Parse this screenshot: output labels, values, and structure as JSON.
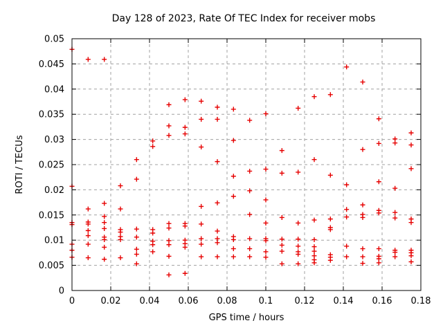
{
  "title": "Day 128 of 2023, Rate Of TEC Index for receiver mobs",
  "colors": {
    "marker": "#e60000",
    "grid": "#a0a0a0",
    "frame": "#000000",
    "background": "#ffffff",
    "text": "#000000"
  },
  "chart_data": {
    "type": "scatter",
    "title": "Day 128 of 2023, Rate Of TEC Index for receiver mobs",
    "xlabel": "GPS time / hours",
    "ylabel": "ROTI / TECUs",
    "xlim": [
      0,
      0.18
    ],
    "ylim": [
      0,
      0.05
    ],
    "x_tick_values": [
      0,
      0.02,
      0.04,
      0.06,
      0.08,
      0.1,
      0.12,
      0.14,
      0.16,
      0.18
    ],
    "x_tick_labels": [
      "0",
      "0.02",
      "0.04",
      "0.06",
      "0.08",
      "0.1",
      "0.12",
      "0.14",
      "0.16",
      "0.18"
    ],
    "y_tick_values": [
      0,
      0.005,
      0.01,
      0.015,
      0.02,
      0.025,
      0.03,
      0.035,
      0.04,
      0.045,
      0.05
    ],
    "y_tick_labels": [
      "0",
      "0.005",
      "0.01",
      "0.015",
      "0.02",
      "0.025",
      "0.03",
      "0.035",
      "0.04",
      "0.045",
      "0.05"
    ],
    "grid": true,
    "legend_position": "none",
    "marker": {
      "shape": "plus",
      "size": 7,
      "color": "#e60000"
    },
    "series": [
      {
        "name": "ROTI",
        "points": [
          [
            0,
            0.0479
          ],
          [
            0,
            0.0207
          ],
          [
            0,
            0.0135
          ],
          [
            0,
            0.0131
          ],
          [
            0,
            0.0092
          ],
          [
            0,
            0.008
          ],
          [
            0,
            0.0066
          ],
          [
            0.00833,
            0.0459
          ],
          [
            0.00833,
            0.0162
          ],
          [
            0.00833,
            0.0136
          ],
          [
            0.00833,
            0.0132
          ],
          [
            0.00833,
            0.0119
          ],
          [
            0.00833,
            0.0109
          ],
          [
            0.00833,
            0.0092
          ],
          [
            0.00833,
            0.0065
          ],
          [
            0.01667,
            0.0459
          ],
          [
            0.01667,
            0.0173
          ],
          [
            0.01667,
            0.0147
          ],
          [
            0.01667,
            0.0135
          ],
          [
            0.01667,
            0.0123
          ],
          [
            0.01667,
            0.0106
          ],
          [
            0.01667,
            0.0101
          ],
          [
            0.01667,
            0.0086
          ],
          [
            0.01667,
            0.0062
          ],
          [
            0.025,
            0.0208
          ],
          [
            0.025,
            0.0162
          ],
          [
            0.025,
            0.0121
          ],
          [
            0.025,
            0.0116
          ],
          [
            0.025,
            0.0107
          ],
          [
            0.025,
            0.0101
          ],
          [
            0.025,
            0.0065
          ],
          [
            0.03333,
            0.026
          ],
          [
            0.03333,
            0.0221
          ],
          [
            0.03333,
            0.0122
          ],
          [
            0.03333,
            0.0106
          ],
          [
            0.03333,
            0.0082
          ],
          [
            0.03333,
            0.0072
          ],
          [
            0.03333,
            0.0053
          ],
          [
            0.04167,
            0.0297
          ],
          [
            0.04167,
            0.0286
          ],
          [
            0.04167,
            0.0121
          ],
          [
            0.04167,
            0.0114
          ],
          [
            0.04167,
            0.0098
          ],
          [
            0.04167,
            0.0091
          ],
          [
            0.04167,
            0.0077
          ],
          [
            0.05,
            0.0369
          ],
          [
            0.05,
            0.0327
          ],
          [
            0.05,
            0.0308
          ],
          [
            0.05,
            0.0133
          ],
          [
            0.05,
            0.0124
          ],
          [
            0.05,
            0.0099
          ],
          [
            0.05,
            0.0091
          ],
          [
            0.05,
            0.0068
          ],
          [
            0.05,
            0.0031
          ],
          [
            0.05833,
            0.0379
          ],
          [
            0.05833,
            0.0324
          ],
          [
            0.05833,
            0.0311
          ],
          [
            0.05833,
            0.0133
          ],
          [
            0.05833,
            0.0128
          ],
          [
            0.05833,
            0.01
          ],
          [
            0.05833,
            0.0093
          ],
          [
            0.05833,
            0.0086
          ],
          [
            0.05833,
            0.0034
          ],
          [
            0.06667,
            0.0376
          ],
          [
            0.06667,
            0.034
          ],
          [
            0.06667,
            0.0285
          ],
          [
            0.06667,
            0.0167
          ],
          [
            0.06667,
            0.0132
          ],
          [
            0.06667,
            0.0103
          ],
          [
            0.06667,
            0.0092
          ],
          [
            0.06667,
            0.0067
          ],
          [
            0.075,
            0.0364
          ],
          [
            0.075,
            0.034
          ],
          [
            0.075,
            0.0256
          ],
          [
            0.075,
            0.0174
          ],
          [
            0.075,
            0.0118
          ],
          [
            0.075,
            0.0103
          ],
          [
            0.075,
            0.0095
          ],
          [
            0.075,
            0.0067
          ],
          [
            0.08333,
            0.036
          ],
          [
            0.08333,
            0.0298
          ],
          [
            0.08333,
            0.0227
          ],
          [
            0.08333,
            0.0187
          ],
          [
            0.08333,
            0.0107
          ],
          [
            0.08333,
            0.0101
          ],
          [
            0.08333,
            0.0083
          ],
          [
            0.08333,
            0.0067
          ],
          [
            0.09167,
            0.0338
          ],
          [
            0.09167,
            0.0237
          ],
          [
            0.09167,
            0.0198
          ],
          [
            0.09167,
            0.0151
          ],
          [
            0.09167,
            0.0103
          ],
          [
            0.09167,
            0.0083
          ],
          [
            0.09167,
            0.0067
          ],
          [
            0.1,
            0.0351
          ],
          [
            0.1,
            0.0241
          ],
          [
            0.1,
            0.018
          ],
          [
            0.1,
            0.0134
          ],
          [
            0.1,
            0.0103
          ],
          [
            0.1,
            0.0099
          ],
          [
            0.1,
            0.0077
          ],
          [
            0.1,
            0.0066
          ],
          [
            0.10833,
            0.0278
          ],
          [
            0.10833,
            0.0233
          ],
          [
            0.10833,
            0.0145
          ],
          [
            0.10833,
            0.0102
          ],
          [
            0.10833,
            0.009
          ],
          [
            0.10833,
            0.0078
          ],
          [
            0.10833,
            0.0053
          ],
          [
            0.11667,
            0.0362
          ],
          [
            0.11667,
            0.0235
          ],
          [
            0.11667,
            0.0134
          ],
          [
            0.11667,
            0.0102
          ],
          [
            0.11667,
            0.0088
          ],
          [
            0.11667,
            0.0077
          ],
          [
            0.11667,
            0.0072
          ],
          [
            0.11667,
            0.0053
          ],
          [
            0.125,
            0.0385
          ],
          [
            0.125,
            0.026
          ],
          [
            0.125,
            0.014
          ],
          [
            0.125,
            0.0101
          ],
          [
            0.125,
            0.0087
          ],
          [
            0.125,
            0.0078
          ],
          [
            0.125,
            0.0069
          ],
          [
            0.125,
            0.0061
          ],
          [
            0.125,
            0.0055
          ],
          [
            0.13333,
            0.0389
          ],
          [
            0.13333,
            0.0229
          ],
          [
            0.13333,
            0.0142
          ],
          [
            0.13333,
            0.0125
          ],
          [
            0.13333,
            0.0121
          ],
          [
            0.13333,
            0.0071
          ],
          [
            0.13333,
            0.0066
          ],
          [
            0.13333,
            0.006
          ],
          [
            0.14167,
            0.0444
          ],
          [
            0.14167,
            0.021
          ],
          [
            0.14167,
            0.0161
          ],
          [
            0.14167,
            0.0146
          ],
          [
            0.14167,
            0.0088
          ],
          [
            0.14167,
            0.0067
          ],
          [
            0.15,
            0.0414
          ],
          [
            0.15,
            0.028
          ],
          [
            0.15,
            0.017
          ],
          [
            0.15,
            0.0151
          ],
          [
            0.15,
            0.0145
          ],
          [
            0.15,
            0.0083
          ],
          [
            0.15,
            0.0067
          ],
          [
            0.15,
            0.0054
          ],
          [
            0.15833,
            0.0341
          ],
          [
            0.15833,
            0.0292
          ],
          [
            0.15833,
            0.0216
          ],
          [
            0.15833,
            0.0159
          ],
          [
            0.15833,
            0.0154
          ],
          [
            0.15833,
            0.0083
          ],
          [
            0.15833,
            0.0068
          ],
          [
            0.15833,
            0.0063
          ],
          [
            0.15833,
            0.0055
          ],
          [
            0.16667,
            0.0301
          ],
          [
            0.16667,
            0.0293
          ],
          [
            0.16667,
            0.0203
          ],
          [
            0.16667,
            0.0155
          ],
          [
            0.16667,
            0.0144
          ],
          [
            0.16667,
            0.008
          ],
          [
            0.16667,
            0.0076
          ],
          [
            0.16667,
            0.0067
          ],
          [
            0.175,
            0.0313
          ],
          [
            0.175,
            0.0289
          ],
          [
            0.175,
            0.0242
          ],
          [
            0.175,
            0.0142
          ],
          [
            0.175,
            0.0135
          ],
          [
            0.175,
            0.008
          ],
          [
            0.175,
            0.0075
          ],
          [
            0.175,
            0.0069
          ],
          [
            0.175,
            0.0057
          ]
        ]
      }
    ]
  }
}
